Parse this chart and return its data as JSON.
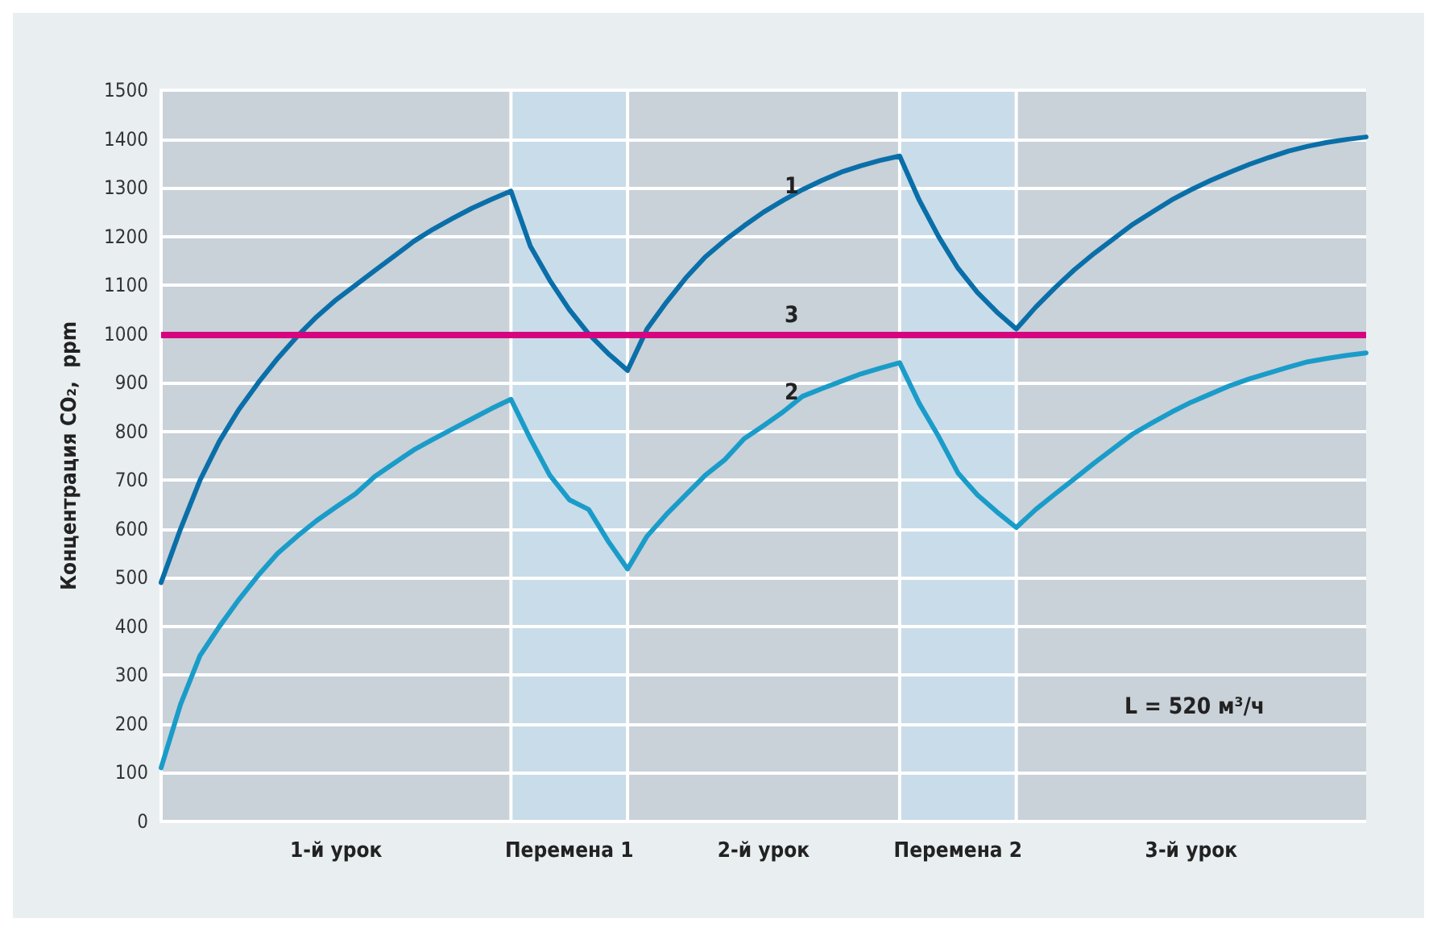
{
  "chart_data": {
    "type": "line",
    "ylabel": "Концентрация CO₂,  ppm",
    "categories": [
      null,
      null,
      null,
      null,
      null,
      null,
      null,
      null,
      null,
      "1-й урок",
      null,
      null,
      null,
      null,
      null,
      null,
      null,
      null,
      null,
      null,
      null,
      "Перемена 1",
      null,
      null,
      null,
      null,
      null,
      null,
      null,
      null,
      null,
      "2-й урок",
      null,
      null,
      null,
      null,
      null,
      null,
      null,
      null,
      null,
      "Перемена 2",
      null,
      null,
      null,
      null,
      null,
      null,
      null,
      null,
      null,
      null,
      null,
      "3-й урок",
      null,
      null,
      null,
      null,
      null,
      null,
      null,
      null,
      null
    ],
    "ylim": [
      0,
      1500
    ],
    "yticks": [
      0,
      100,
      200,
      300,
      400,
      500,
      600,
      700,
      800,
      900,
      1000,
      1100,
      1200,
      1300,
      1400,
      1500
    ],
    "grid": "y",
    "marker": "none",
    "line_style": "solid",
    "series": [
      {
        "color": "#0a6fa8",
        "values": [
          490,
          600,
          700,
          780,
          845,
          900,
          950,
          995,
          1035,
          1070,
          1100,
          1130,
          1160,
          1190,
          1215,
          1237,
          1258,
          1276,
          1293,
          1180,
          1110,
          1050,
          1000,
          960,
          925,
          1010,
          1065,
          1115,
          1158,
          1192,
          1222,
          1250,
          1274,
          1296,
          1315,
          1332,
          1345,
          1356,
          1365,
          1275,
          1200,
          1135,
          1085,
          1045,
          1010,
          1055,
          1095,
          1132,
          1165,
          1195,
          1225,
          1250,
          1275,
          1296,
          1315,
          1332,
          1348,
          1362,
          1375,
          1385,
          1393,
          1399,
          1404
        ]
      },
      {
        "color": "#1a9cc9",
        "values": [
          110,
          240,
          340,
          400,
          455,
          505,
          550,
          585,
          617,
          645,
          672,
          708,
          735,
          762,
          784,
          805,
          826,
          847,
          866,
          785,
          710,
          660,
          640,
          575,
          518,
          585,
          630,
          670,
          710,
          742,
          785,
          812,
          840,
          872,
          888,
          903,
          918,
          930,
          941,
          858,
          790,
          715,
          670,
          635,
          603,
          640,
          672,
          703,
          735,
          765,
          795,
          818,
          840,
          860,
          877,
          894,
          908,
          920,
          932,
          943,
          950,
          956,
          961
        ]
      }
    ],
    "ref_lines": [
      {
        "axis": "y",
        "value": 1000,
        "color": "#d6047f"
      }
    ],
    "annotations": [
      "1",
      "3",
      "2",
      "L = 520 м³/ч"
    ]
  }
}
